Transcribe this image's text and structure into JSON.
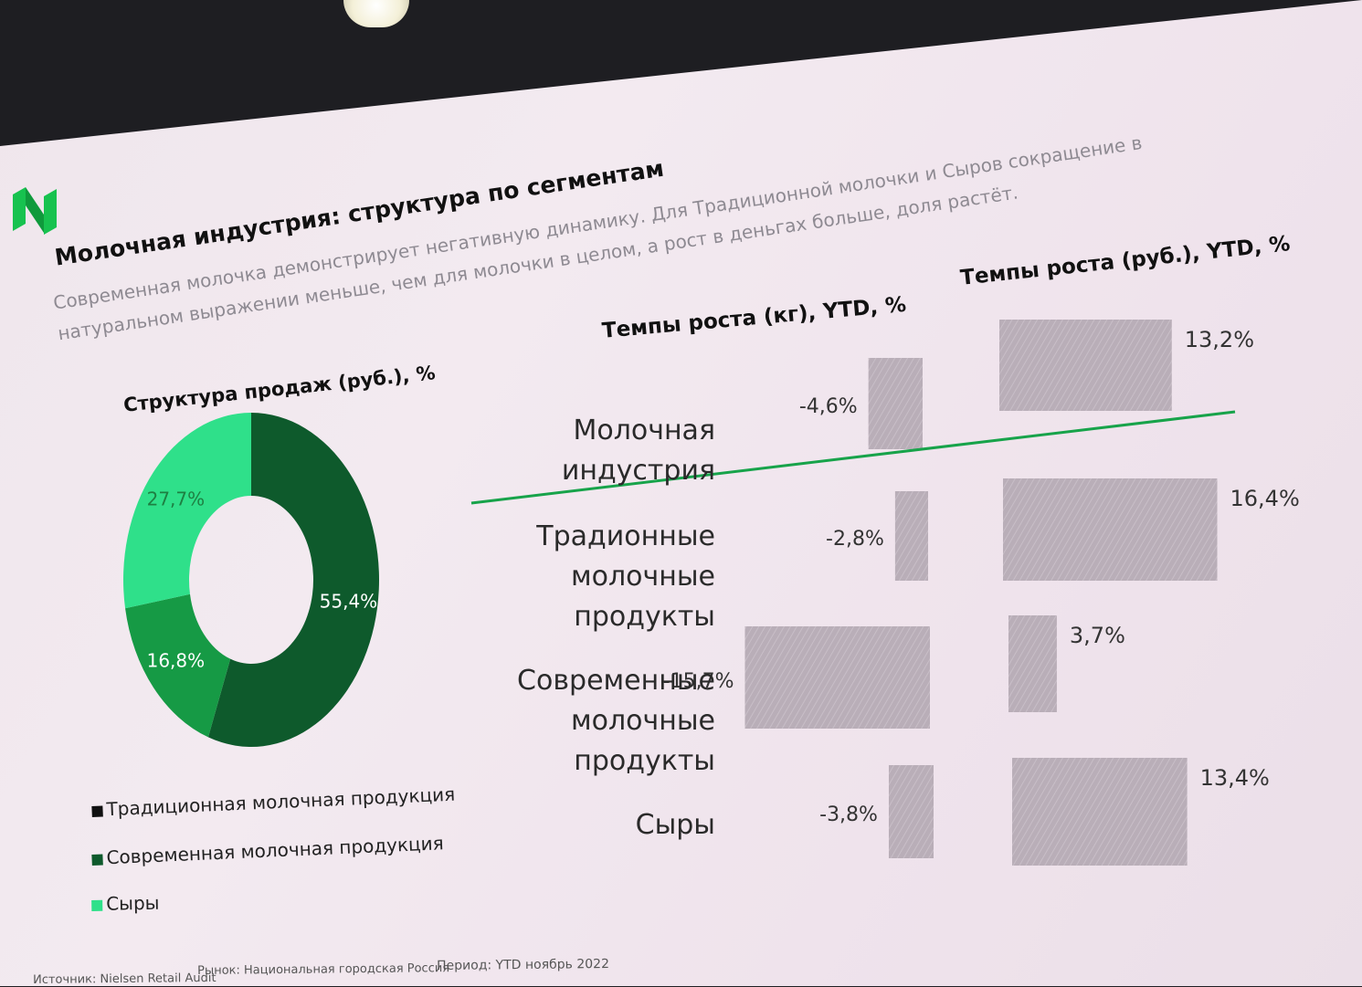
{
  "slide": {
    "title": "Молочная индустрия: структура по сегментам",
    "subtitle_line1": "Современная молочка демонстрирует негативную динамику. Для Традиционной молочки и Сыров сокращение в",
    "subtitle_line2": "натуральном выражении меньше, чем для молочки в целом, а рост в деньгах больше, доля растёт.",
    "logo_icon": "n-logo-icon",
    "accent_color": "#17a34a"
  },
  "chart_data": [
    {
      "type": "pie",
      "title": "Структура продаж (руб.), %",
      "labels": [
        "Традиционная молочная продукция",
        "Современная молочная продукция",
        "Сыры"
      ],
      "values": [
        55.4,
        16.8,
        27.7
      ],
      "value_labels": [
        "55,4%",
        "16,8%",
        "27,7%"
      ],
      "colors": [
        "#0e5a2c",
        "#169a45",
        "#2fe08a"
      ],
      "legend_position": "bottom"
    },
    {
      "type": "bar",
      "orientation": "horizontal",
      "title": "Темпы роста (кг), YTD, %",
      "categories": [
        "Молочная индустрия",
        "Традионные молочные продукты",
        "Современные молочные продукты",
        "Сыры"
      ],
      "values": [
        -4.6,
        -2.8,
        -15.7,
        -3.8
      ],
      "value_labels": [
        "-4,6%",
        "-2,8%",
        "-15,7%",
        "-3,8%"
      ],
      "color": "#b9aeb8"
    },
    {
      "type": "bar",
      "orientation": "horizontal",
      "title": "Темпы роста (руб.), YTD, %",
      "categories": [
        "Молочная индустрия",
        "Традионные молочные продукты",
        "Современные молочные продукты",
        "Сыры"
      ],
      "values": [
        13.2,
        16.4,
        3.7,
        13.4
      ],
      "value_labels": [
        "13,2%",
        "16,4%",
        "3,7%",
        "13,4%"
      ],
      "color": "#b9aeb8"
    }
  ],
  "categories_display": [
    [
      "Молочная",
      "индустрия"
    ],
    [
      "Традионные",
      "молочные",
      "продукты"
    ],
    [
      "Современные",
      "молочные",
      "продукты"
    ],
    [
      "Сыры"
    ]
  ],
  "footer": {
    "source": "Источник: Nielsen Retail Audit",
    "market": "Рынок: Национальная городская Россия",
    "period": "Период: YTD ноябрь 2022"
  }
}
